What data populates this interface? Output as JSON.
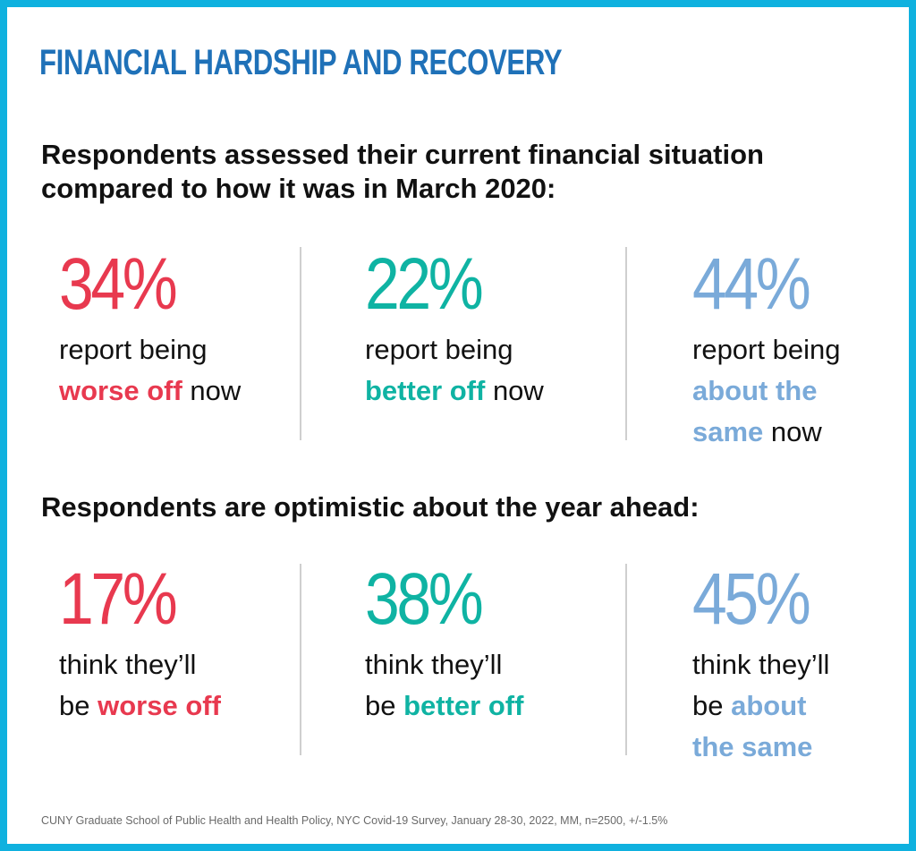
{
  "title": "FINANCIAL HARDSHIP AND RECOVERY",
  "source": "CUNY Graduate School of Public Health and Health Policy, NYC Covid-19 Survey, January 28-30, 2022, MM, n=2500, +/-1.5%",
  "colors": {
    "border": "#0fb1df",
    "title": "#1f71b8",
    "worse": "#e8394f",
    "better": "#0fb3a3",
    "same": "#7aaad9"
  },
  "chart_data": [
    {
      "type": "table",
      "title": "Respondents assessed their current financial situation compared to how it was in March 2020:",
      "title_lines": [
        "Respondents assessed their current financial situation",
        "compared to how it was in March 2020:"
      ],
      "categories": [
        "worse off",
        "better off",
        "about the same"
      ],
      "values": [
        34,
        22,
        44
      ],
      "labels": [
        "34%",
        "22%",
        "44%"
      ],
      "descriptions": [
        {
          "line1": "report being",
          "highlight": "worse off",
          "suffix": " now"
        },
        {
          "line1": "report being",
          "highlight": "better off",
          "suffix": " now"
        },
        {
          "line1": "report being",
          "highlight_a": "about the",
          "highlight_b": "same",
          "suffix": " now"
        }
      ]
    },
    {
      "type": "table",
      "title": "Respondents are optimistic about the year ahead:",
      "categories": [
        "worse off",
        "better off",
        "about the same"
      ],
      "values": [
        17,
        38,
        45
      ],
      "labels": [
        "17%",
        "38%",
        "45%"
      ],
      "descriptions": [
        {
          "line1": "think they’ll",
          "prefix": "be ",
          "highlight": "worse off"
        },
        {
          "line1": "think they’ll",
          "prefix": "be ",
          "highlight": "better off"
        },
        {
          "line1": "think they’ll",
          "prefix": "be ",
          "highlight_a": "about",
          "highlight_b": "the same"
        }
      ]
    }
  ]
}
